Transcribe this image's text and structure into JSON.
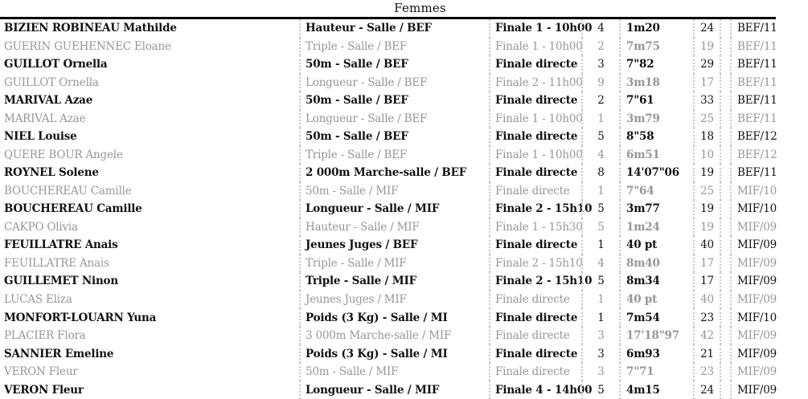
{
  "page": {
    "title": "Femmes"
  },
  "colors": {
    "text_black": "#111111",
    "text_muted": "#969696",
    "separator_dotted": "#c9c9c9",
    "header_rule": "#000000",
    "background": "#ffffff"
  },
  "table": {
    "columns": [
      "name",
      "event",
      "round",
      "position",
      "performance",
      "points",
      "category"
    ],
    "rows": [
      {
        "name": "BIZIEN ROBINEAU Mathilde",
        "event": "Hauteur - Salle / BEF",
        "round": "Finale 1 - 10h00",
        "position": "4",
        "performance": "1m20",
        "points": "24",
        "category": "BEF/11",
        "emphasis": "active"
      },
      {
        "name": "GUERIN GUEHENNEC Eloane",
        "event": "Triple - Salle / BEF",
        "round": "Finale 1 - 10h00",
        "position": "2",
        "performance": "7m75",
        "points": "19",
        "category": "BEF/11",
        "emphasis": "muted"
      },
      {
        "name": "GUILLOT Ornella",
        "event": "50m - Salle / BEF",
        "round": "Finale directe",
        "position": "3",
        "performance": "7\"82",
        "points": "29",
        "category": "BEF/11",
        "emphasis": "active"
      },
      {
        "name": "GUILLOT Ornella",
        "event": "Longueur - Salle / BEF",
        "round": "Finale 2 - 11h00",
        "position": "9",
        "performance": "3m18",
        "points": "17",
        "category": "BEF/11",
        "emphasis": "muted"
      },
      {
        "name": "MARIVAL Azae",
        "event": "50m - Salle / BEF",
        "round": "Finale directe",
        "position": "2",
        "performance": "7\"61",
        "points": "33",
        "category": "BEF/11",
        "emphasis": "active"
      },
      {
        "name": "MARIVAL Azae",
        "event": "Longueur - Salle / BEF",
        "round": "Finale 1 - 10h00",
        "position": "1",
        "performance": "3m79",
        "points": "25",
        "category": "BEF/11",
        "emphasis": "muted"
      },
      {
        "name": "NIEL Louise",
        "event": "50m - Salle / BEF",
        "round": "Finale directe",
        "position": "5",
        "performance": "8\"58",
        "points": "18",
        "category": "BEF/12",
        "emphasis": "active"
      },
      {
        "name": "QUERE BOUR Angele",
        "event": "Triple - Salle / BEF",
        "round": "Finale 1 - 10h00",
        "position": "4",
        "performance": "6m51",
        "points": "10",
        "category": "BEF/12",
        "emphasis": "muted"
      },
      {
        "name": "ROYNEL Solene",
        "event": "2 000m Marche-salle / BEF",
        "round": "Finale directe",
        "position": "8",
        "performance": "14'07\"06",
        "points": "19",
        "category": "BEF/11",
        "emphasis": "active"
      },
      {
        "name": "BOUCHEREAU Camille",
        "event": "50m - Salle / MIF",
        "round": "Finale directe",
        "position": "1",
        "performance": "7\"64",
        "points": "25",
        "category": "MIF/10",
        "emphasis": "muted"
      },
      {
        "name": "BOUCHEREAU Camille",
        "event": "Longueur - Salle / MIF",
        "round": "Finale 2 - 15h10",
        "position": "5",
        "performance": "3m77",
        "points": "19",
        "category": "MIF/10",
        "emphasis": "active"
      },
      {
        "name": "CAKPO Olivia",
        "event": "Hauteur - Salle / MIF",
        "round": "Finale 1 - 15h30",
        "position": "5",
        "performance": "1m24",
        "points": "19",
        "category": "MIF/09",
        "emphasis": "muted"
      },
      {
        "name": "FEUILLATRE Anais",
        "event": "Jeunes Juges / BEF",
        "round": "Finale directe",
        "position": "1",
        "performance": "40 pt",
        "points": "40",
        "category": "MIF/09",
        "emphasis": "active"
      },
      {
        "name": "FEUILLATRE Anais",
        "event": "Triple - Salle / MIF",
        "round": "Finale 2 - 15h10",
        "position": "4",
        "performance": "8m40",
        "points": "17",
        "category": "MIF/09",
        "emphasis": "muted"
      },
      {
        "name": "GUILLEMET Ninon",
        "event": "Triple - Salle / MIF",
        "round": "Finale 2 - 15h10",
        "position": "5",
        "performance": "8m34",
        "points": "17",
        "category": "MIF/09",
        "emphasis": "active"
      },
      {
        "name": "LUCAS Eliza",
        "event": "Jeunes Juges / MIF",
        "round": "Finale directe",
        "position": "1",
        "performance": "40 pt",
        "points": "40",
        "category": "MIF/09",
        "emphasis": "muted"
      },
      {
        "name": "MONFORT-LOUARN Yuna",
        "event": "Poids (3 Kg) - Salle / MI",
        "round": "Finale directe",
        "position": "1",
        "performance": "7m54",
        "points": "23",
        "category": "MIF/10",
        "emphasis": "active"
      },
      {
        "name": "PLACIER Flora",
        "event": "3 000m Marche-salle / MIF",
        "round": "Finale directe",
        "position": "3",
        "performance": "17'18\"97",
        "points": "42",
        "category": "MIF/09",
        "emphasis": "muted"
      },
      {
        "name": "SANNIER Emeline",
        "event": "Poids (3 Kg) - Salle / MI",
        "round": "Finale directe",
        "position": "3",
        "performance": "6m93",
        "points": "21",
        "category": "MIF/09",
        "emphasis": "active"
      },
      {
        "name": "VERON Fleur",
        "event": "50m - Salle / MIF",
        "round": "Finale directe",
        "position": "3",
        "performance": "7\"71",
        "points": "23",
        "category": "MIF/09",
        "emphasis": "muted"
      },
      {
        "name": "VERON Fleur",
        "event": "Longueur - Salle / MIF",
        "round": "Finale 4 - 14h00",
        "position": "5",
        "performance": "4m15",
        "points": "24",
        "category": "MIF/09",
        "emphasis": "active"
      }
    ]
  }
}
